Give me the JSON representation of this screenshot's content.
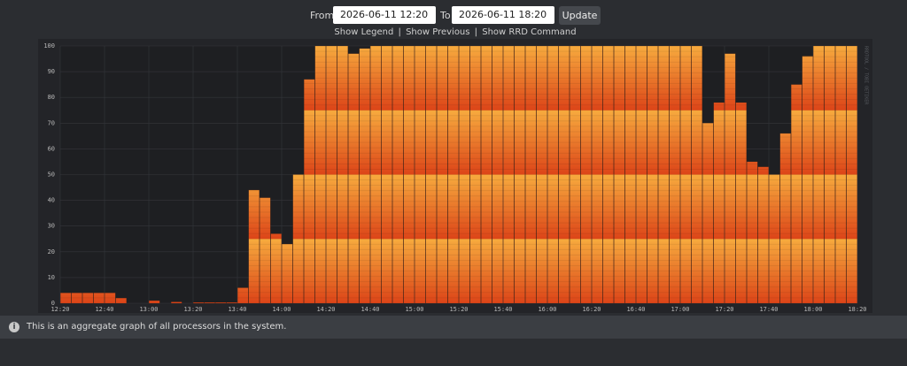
{
  "header": {
    "from_label": "From",
    "from_value": "2026-06-11 12:20",
    "to_label": "To",
    "to_value": "2026-06-11 18:20",
    "update_button": "Update"
  },
  "links": [
    "Show Legend",
    "Show Previous",
    "Show RRD Command"
  ],
  "link_separator": "|",
  "chart_data": {
    "type": "bar",
    "xticks": [
      "12:20",
      "12:40",
      "13:00",
      "13:20",
      "13:40",
      "14:00",
      "14:20",
      "14:40",
      "15:00",
      "15:20",
      "15:40",
      "16:00",
      "16:20",
      "16:40",
      "17:00",
      "17:20",
      "17:40",
      "18:00",
      "18:20"
    ],
    "values": [
      4,
      4,
      4,
      4,
      4,
      2,
      0,
      0,
      1,
      0,
      0.5,
      0,
      0.3,
      0.3,
      0.3,
      0.3,
      6,
      44,
      41,
      27,
      23,
      50,
      87,
      100,
      100,
      100,
      97,
      99,
      100,
      100,
      100,
      100,
      100,
      100,
      100,
      100,
      100,
      100,
      100,
      100,
      100,
      100,
      100,
      100,
      100,
      100,
      100,
      100,
      100,
      100,
      100,
      100,
      100,
      100,
      100,
      100,
      100,
      100,
      70,
      78,
      97,
      78,
      55,
      53,
      50,
      66,
      85,
      96,
      100,
      100,
      100,
      100
    ],
    "ylim": [
      0,
      100
    ],
    "yticks": [
      0,
      10,
      20,
      30,
      40,
      50,
      60,
      70,
      80,
      90,
      100
    ],
    "band": 25,
    "colors": [
      "#dc4418",
      "#f7ab3e"
    ],
    "grid": true,
    "watermark": "RRDTOOL / TOBI OETIKER"
  },
  "info": "This is an aggregate graph of all processors in the system."
}
